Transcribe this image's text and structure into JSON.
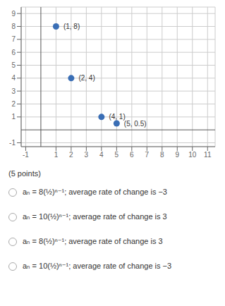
{
  "chart_data": {
    "type": "scatter",
    "x": [
      1,
      2,
      4,
      5
    ],
    "values": [
      8,
      4,
      1,
      0.5
    ],
    "value_labels": [
      "(1, 8)",
      "(2, 4)",
      "(4, 1)",
      "(5, 0.5)"
    ],
    "data_labels": true,
    "color": "#3a6eb5",
    "xlim": [
      -1.3,
      11.5
    ],
    "ylim": [
      -1.3,
      9.5
    ],
    "xticks": [
      -1,
      1,
      2,
      3,
      4,
      5,
      6,
      7,
      8,
      9,
      10,
      11
    ],
    "yticks": [
      -1,
      1,
      2,
      3,
      4,
      5,
      6,
      7,
      8,
      9
    ],
    "grid": true,
    "annotations": [
      "(5 points)",
      "aₙ = 8(½)ⁿ⁻¹; average rate of change is −3",
      "aₙ = 10(½)ⁿ⁻¹; average rate of change is 3",
      "aₙ = 8(½)ⁿ⁻¹; average rate of change is 3",
      "aₙ = 10(½)ⁿ⁻¹; average rate of change is −3"
    ]
  }
}
